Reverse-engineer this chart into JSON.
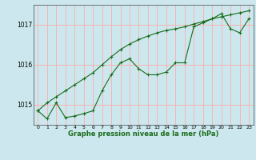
{
  "xlabel": "Graphe pression niveau de la mer (hPa)",
  "bg_color": "#cce8ee",
  "grid_color": "#ffaaaa",
  "line_color": "#1a6b1a",
  "x_values": [
    0,
    1,
    2,
    3,
    4,
    5,
    6,
    7,
    8,
    9,
    10,
    11,
    12,
    13,
    14,
    15,
    16,
    17,
    18,
    19,
    20,
    21,
    22,
    23
  ],
  "line1_y": [
    1014.85,
    1014.65,
    1015.05,
    1014.68,
    1014.72,
    1014.78,
    1014.85,
    1015.35,
    1015.75,
    1016.05,
    1016.15,
    1015.9,
    1015.75,
    1015.75,
    1015.82,
    1016.05,
    1016.05,
    1016.95,
    1017.05,
    1017.15,
    1017.28,
    1016.9,
    1016.8,
    1017.15
  ],
  "line2_y": [
    1014.85,
    1015.05,
    1015.2,
    1015.35,
    1015.5,
    1015.65,
    1015.8,
    1016.0,
    1016.2,
    1016.38,
    1016.52,
    1016.63,
    1016.72,
    1016.8,
    1016.86,
    1016.9,
    1016.95,
    1017.02,
    1017.08,
    1017.15,
    1017.2,
    1017.25,
    1017.3,
    1017.35
  ],
  "ylim": [
    1014.5,
    1017.5
  ],
  "yticks": [
    1015,
    1016,
    1017
  ],
  "xlim": [
    -0.5,
    23.5
  ],
  "xticks": [
    0,
    1,
    2,
    3,
    4,
    5,
    6,
    7,
    8,
    9,
    10,
    11,
    12,
    13,
    14,
    15,
    16,
    17,
    18,
    19,
    20,
    21,
    22,
    23
  ]
}
